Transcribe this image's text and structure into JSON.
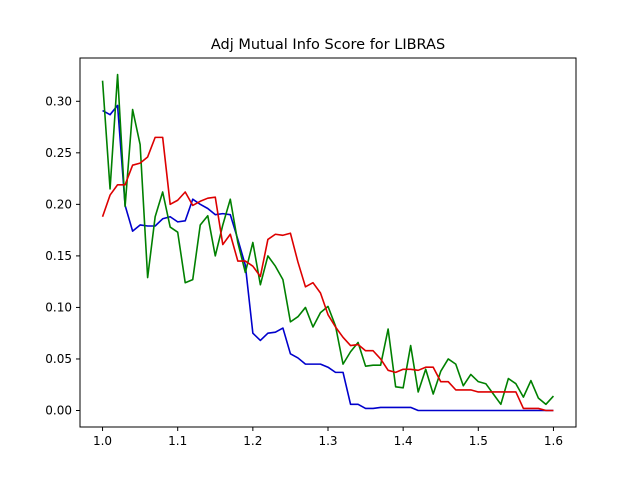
{
  "chart_data": {
    "type": "line",
    "title": "Adj Mutual Info Score for LIBRAS",
    "xlabel": "",
    "ylabel": "",
    "xlim": [
      0.97,
      1.63
    ],
    "ylim": [
      -0.016,
      0.342
    ],
    "x_ticks": [
      1.0,
      1.1,
      1.2,
      1.3,
      1.4,
      1.5,
      1.6
    ],
    "x_tick_labels": [
      "1.0",
      "1.1",
      "1.2",
      "1.3",
      "1.4",
      "1.5",
      "1.6"
    ],
    "y_ticks": [
      0.0,
      0.05,
      0.1,
      0.15,
      0.2,
      0.25,
      0.3
    ],
    "y_tick_labels": [
      "0.00",
      "0.05",
      "0.10",
      "0.15",
      "0.20",
      "0.25",
      "0.30"
    ],
    "grid": false,
    "legend": "none",
    "x": [
      1.0,
      1.01,
      1.02,
      1.03,
      1.04,
      1.05,
      1.06,
      1.07,
      1.08,
      1.09,
      1.1,
      1.11,
      1.12,
      1.13,
      1.14,
      1.15,
      1.16,
      1.17,
      1.18,
      1.19,
      1.2,
      1.21,
      1.22,
      1.23,
      1.24,
      1.25,
      1.26,
      1.27,
      1.28,
      1.29,
      1.3,
      1.31,
      1.32,
      1.33,
      1.34,
      1.35,
      1.36,
      1.37,
      1.38,
      1.39,
      1.4,
      1.41,
      1.42,
      1.43,
      1.44,
      1.45,
      1.46,
      1.47,
      1.48,
      1.49,
      1.5,
      1.51,
      1.52,
      1.53,
      1.54,
      1.55,
      1.56,
      1.57,
      1.58,
      1.59,
      1.6
    ],
    "series": [
      {
        "color": "#0000cc",
        "values": [
          0.291,
          0.287,
          0.296,
          0.199,
          0.174,
          0.18,
          0.179,
          0.179,
          0.186,
          0.188,
          0.183,
          0.184,
          0.205,
          0.2,
          0.196,
          0.19,
          0.191,
          0.19,
          0.166,
          0.141,
          0.075,
          0.068,
          0.075,
          0.076,
          0.08,
          0.055,
          0.051,
          0.045,
          0.045,
          0.045,
          0.042,
          0.037,
          0.037,
          0.006,
          0.006,
          0.002,
          0.002,
          0.003,
          0.003,
          0.003,
          0.003,
          0.003,
          0.0,
          0.0,
          0.0,
          0.0,
          0.0,
          0.0,
          0.0,
          0.0,
          0.0,
          0.0,
          0.0,
          0.0,
          0.0,
          0.0,
          0.0,
          0.0,
          0.0,
          0.0,
          0.0
        ]
      },
      {
        "color": "#008000",
        "values": [
          0.32,
          0.215,
          0.326,
          0.198,
          0.292,
          0.258,
          0.129,
          0.188,
          0.212,
          0.178,
          0.173,
          0.124,
          0.127,
          0.18,
          0.189,
          0.15,
          0.18,
          0.205,
          0.163,
          0.134,
          0.163,
          0.122,
          0.15,
          0.14,
          0.127,
          0.086,
          0.091,
          0.1,
          0.081,
          0.095,
          0.101,
          0.082,
          0.045,
          0.057,
          0.066,
          0.043,
          0.044,
          0.044,
          0.079,
          0.023,
          0.022,
          0.063,
          0.018,
          0.04,
          0.016,
          0.038,
          0.05,
          0.045,
          0.024,
          0.035,
          0.028,
          0.026,
          0.016,
          0.006,
          0.031,
          0.026,
          0.013,
          0.029,
          0.012,
          0.006,
          0.014
        ]
      },
      {
        "color": "#dd0000",
        "values": [
          0.188,
          0.209,
          0.219,
          0.219,
          0.238,
          0.24,
          0.246,
          0.265,
          0.265,
          0.2,
          0.204,
          0.212,
          0.199,
          0.203,
          0.206,
          0.207,
          0.161,
          0.171,
          0.145,
          0.145,
          0.14,
          0.13,
          0.166,
          0.171,
          0.17,
          0.172,
          0.144,
          0.12,
          0.124,
          0.114,
          0.093,
          0.081,
          0.071,
          0.063,
          0.064,
          0.058,
          0.058,
          0.05,
          0.039,
          0.037,
          0.04,
          0.04,
          0.039,
          0.042,
          0.042,
          0.028,
          0.028,
          0.02,
          0.02,
          0.02,
          0.018,
          0.018,
          0.018,
          0.018,
          0.018,
          0.018,
          0.002,
          0.002,
          0.002,
          0.0,
          0.0
        ]
      }
    ]
  }
}
